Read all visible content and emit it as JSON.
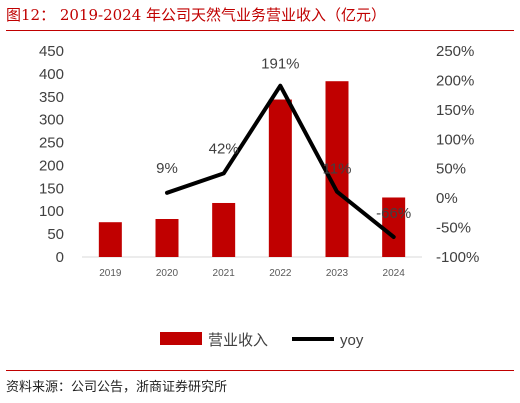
{
  "header": {
    "title": "图12：  2019-2024 年公司天然气业务营业收入（亿元）"
  },
  "footer": {
    "source": "资料来源：公司公告，浙商证券研究所"
  },
  "colors": {
    "accent": "#c00000",
    "bar": "#c00000",
    "line": "#000000"
  },
  "chart_data": {
    "type": "bar",
    "categories": [
      "2019",
      "2020",
      "2021",
      "2022",
      "2023",
      "2024"
    ],
    "series": [
      {
        "name": "营业收入",
        "type": "bar",
        "axis": "left",
        "values": [
          76,
          83,
          118,
          344,
          384,
          130
        ]
      },
      {
        "name": "yoy",
        "type": "line",
        "axis": "right",
        "values": [
          null,
          9,
          42,
          191,
          11,
          -66
        ],
        "labels": [
          "",
          "9%",
          "42%",
          "191%",
          "11%",
          "-66%"
        ]
      }
    ],
    "left_axis": {
      "ylim": [
        0,
        450
      ],
      "ticks": [
        "0",
        "50",
        "100",
        "150",
        "200",
        "250",
        "300",
        "350",
        "400",
        "450"
      ]
    },
    "right_axis": {
      "ylim": [
        -100,
        250
      ],
      "ticks": [
        "-100%",
        "-50%",
        "0%",
        "50%",
        "100%",
        "150%",
        "200%",
        "250%"
      ]
    },
    "legend": {
      "position": "bottom",
      "items": [
        "营业收入",
        "yoy"
      ]
    },
    "grid": false
  }
}
